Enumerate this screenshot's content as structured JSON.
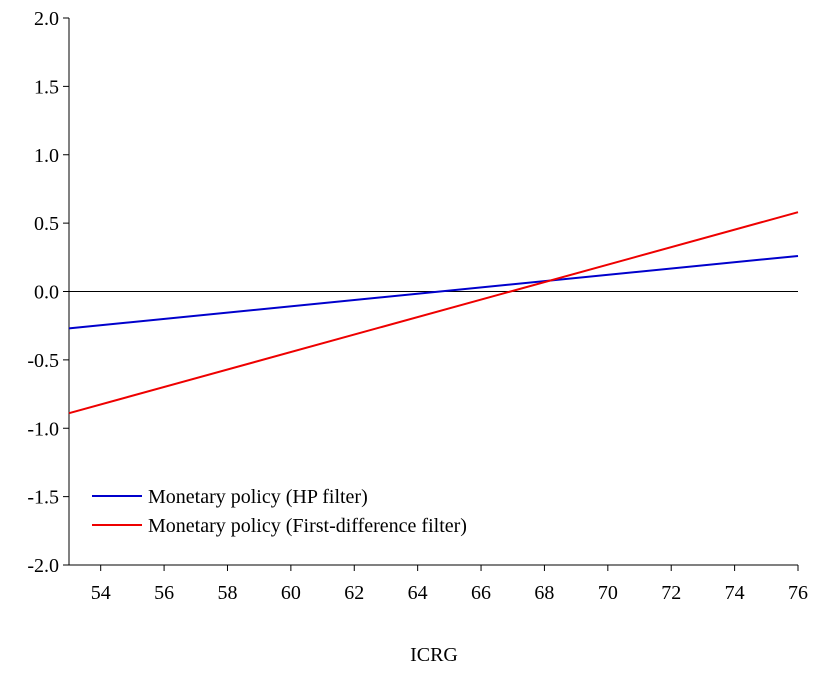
{
  "chart_data": {
    "type": "line",
    "title": "",
    "xlabel": "ICRG",
    "ylabel": "",
    "xlim": [
      53,
      76
    ],
    "ylim": [
      -2.0,
      2.0
    ],
    "xticks": [
      54,
      56,
      58,
      60,
      62,
      64,
      66,
      68,
      70,
      72,
      74,
      76
    ],
    "xtick_labels": [
      "54",
      "56",
      "58",
      "60",
      "62",
      "64",
      "66",
      "68",
      "70",
      "72",
      "74",
      "76"
    ],
    "yticks": [
      -2.0,
      -1.5,
      -1.0,
      -0.5,
      0.0,
      0.5,
      1.0,
      1.5,
      2.0
    ],
    "ytick_labels": [
      "-2.0",
      "-1.5",
      "-1.0",
      "-0.5",
      "0.0",
      "0.5",
      "1.0",
      "1.5",
      "2.0"
    ],
    "reference_line_y": 0,
    "grid": false,
    "legend_position": "bottom-left",
    "series": [
      {
        "name": "Monetary policy (HP filter)",
        "color": "#0000cc",
        "x": [
          53,
          76
        ],
        "y": [
          -0.27,
          0.26
        ]
      },
      {
        "name": "Monetary policy (First-difference filter)",
        "color": "#ee0000",
        "x": [
          53,
          76
        ],
        "y": [
          -0.89,
          0.58
        ]
      }
    ]
  }
}
